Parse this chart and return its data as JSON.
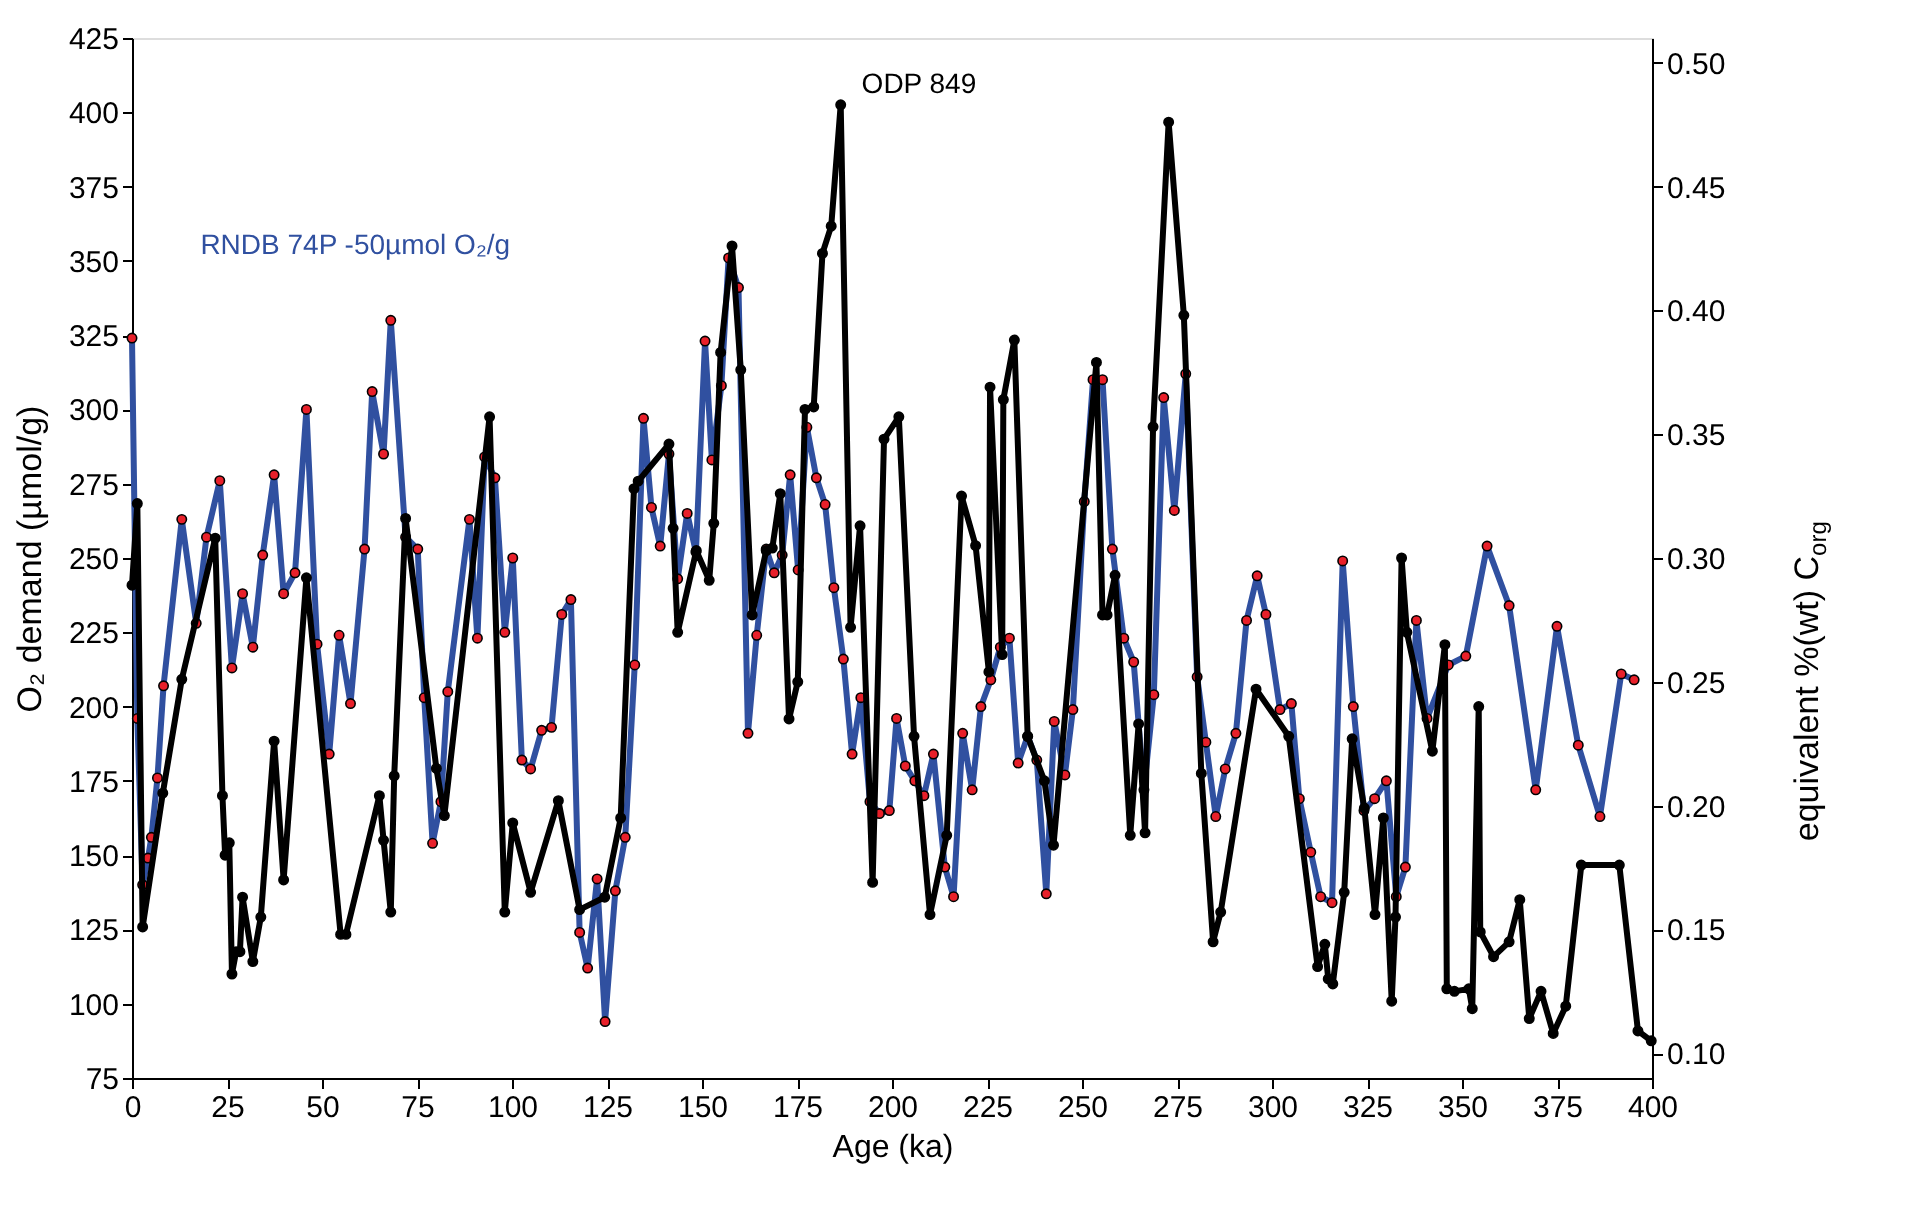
{
  "chart_data": {
    "type": "line",
    "xlabel": "Age (ka)",
    "ylabel": "O₂ demand (µmol/g)",
    "y2label": "equivalent  %(wt) C$_{org}$",
    "xlim": [
      0,
      400
    ],
    "xticks": [
      0,
      25,
      50,
      75,
      100,
      125,
      150,
      175,
      200,
      225,
      250,
      275,
      300,
      325,
      350,
      375,
      400
    ],
    "ylim": [
      75,
      425
    ],
    "yticks": [
      75,
      100,
      125,
      150,
      175,
      200,
      225,
      250,
      275,
      300,
      325,
      350,
      375,
      400,
      425
    ],
    "y2lim": [
      0.09,
      0.51
    ],
    "y2ticks": [
      {
        "value": 0.1,
        "label": "0.10"
      },
      {
        "value": 0.15,
        "label": "0.15"
      },
      {
        "value": 0.2,
        "label": "0.20"
      },
      {
        "value": 0.25,
        "label": "0.25"
      },
      {
        "value": 0.3,
        "label": "0.30"
      },
      {
        "value": 0.35,
        "label": "0.35"
      },
      {
        "value": 0.4,
        "label": "0.40"
      },
      {
        "value": 0.45,
        "label": "0.45"
      },
      {
        "value": 0.5,
        "label": "0.50"
      }
    ],
    "grid": false,
    "legend": false,
    "marker": "circle",
    "line_style": "solid",
    "series": [
      {
        "name": "RNDB 74P -50µmol O₂/g",
        "color": "#3050a0",
        "x": [
          0,
          1.4,
          2.8,
          4.2,
          5.1,
          6.7,
          8.3,
          13.1,
          16.9,
          19.6,
          23.1,
          26.3,
          29.1,
          31.8,
          34.4,
          37.4,
          39.9,
          42.9,
          45.9,
          48.7,
          51.9,
          54.5,
          57.5,
          61.2,
          63.2,
          66.2,
          68.1,
          72.0,
          75.2,
          76.9,
          79.1,
          81.3,
          83.1,
          88.8,
          90.9,
          92.8,
          95.5,
          98.1,
          100.2,
          102.6,
          104.9,
          107.8,
          110.4,
          113.1,
          115.5,
          117.8,
          119.9,
          122.4,
          124.5,
          127.2,
          129.8,
          132.3,
          134.6,
          136.7,
          139.0,
          141.3,
          143.6,
          146.1,
          148.4,
          150.8,
          152.6,
          155.1,
          157.0,
          159.6,
          162.1,
          164.4,
          166.9,
          169.0,
          171.1,
          173.2,
          175.3,
          177.6,
          180.1,
          182.4,
          184.7,
          187.2,
          189.5,
          191.8,
          194.2,
          196.7,
          199.3,
          201.2,
          203.5,
          206.0,
          208.4,
          210.9,
          213.9,
          216.2,
          218.6,
          221.1,
          223.4,
          226.0,
          228.5,
          230.9,
          233.2,
          235.7,
          238.1,
          240.6,
          242.7,
          245.5,
          247.6,
          250.6,
          252.9,
          255.4,
          258.0,
          261.0,
          263.6,
          266.3,
          268.9,
          271.5,
          274.3,
          277.3,
          280.3,
          282.6,
          285.2,
          287.7,
          290.5,
          293.3,
          296.1,
          298.4,
          302.1,
          305.1,
          307.2,
          310.2,
          312.8,
          315.8,
          318.6,
          321.4,
          324.2,
          327.0,
          330.1,
          332.7,
          335.1,
          338.0,
          340.8,
          346.4,
          351.0,
          356.6,
          362.4,
          369.4,
          375.0,
          380.6,
          386.3,
          391.9,
          395.3
        ],
        "values": [
          324,
          196,
          140,
          149,
          156,
          176,
          207,
          263,
          228,
          257,
          276,
          213,
          238,
          220,
          251,
          278,
          238,
          245,
          300,
          221,
          184,
          224,
          201,
          253,
          306,
          285,
          330,
          257,
          253,
          203,
          154,
          168,
          205,
          263,
          223,
          284,
          277,
          225,
          250,
          182,
          179,
          192,
          193,
          231,
          236,
          124,
          112,
          142,
          94,
          138,
          156,
          214,
          297,
          267,
          254,
          285,
          243,
          265,
          252,
          323,
          283,
          308,
          351,
          341,
          191,
          224,
          253,
          245,
          251,
          278,
          246,
          294,
          277,
          268,
          240,
          216,
          184,
          203,
          168,
          164,
          165,
          196,
          180,
          175,
          170,
          184,
          146,
          136,
          191,
          172,
          200,
          209,
          220,
          223,
          181,
          190,
          182,
          137,
          195,
          177,
          199,
          269,
          310,
          310,
          253,
          223,
          215,
          172,
          204,
          304,
          266,
          312,
          210,
          188,
          163,
          179,
          191,
          229,
          244,
          231,
          199,
          201,
          169,
          151,
          136,
          134,
          249,
          200,
          165,
          169,
          175,
          136,
          146,
          229,
          196,
          214,
          217,
          254,
          234,
          172,
          227,
          187,
          163,
          211,
          209
        ]
      },
      {
        "name": "ODP 849",
        "color": "#000000",
        "axis": "y2",
        "x": [
          0,
          1.4,
          2.8,
          8.1,
          13.1,
          21.9,
          23.8,
          24.5,
          25.6,
          26.3,
          27.4,
          28.4,
          29.1,
          31.8,
          33.9,
          37.4,
          39.9,
          45.9,
          54.9,
          56.3,
          65.1,
          66.2,
          68.1,
          69.0,
          72.0,
          80.1,
          82.2,
          94.1,
          98.1,
          100.2,
          104.9,
          112.2,
          117.8,
          124.4,
          128.6,
          132.1,
          133.2,
          141.3,
          142.4,
          143.6,
          148.5,
          151.9,
          153.1,
          154.9,
          157.9,
          160.2,
          163.2,
          166.9,
          168.5,
          170.6,
          172.9,
          175.2,
          177.1,
          179.4,
          181.7,
          184.0,
          186.5,
          189.1,
          191.6,
          194.9,
          197.9,
          201.8,
          205.8,
          210.0,
          214.4,
          218.3,
          222.0,
          225.5,
          225.8,
          229.0,
          229.3,
          232.2,
          235.7,
          240.1,
          242.5,
          253.8,
          255.4,
          256.6,
          258.7,
          262.7,
          264.9,
          266.6,
          268.7,
          272.8,
          276.8,
          281.4,
          284.5,
          286.5,
          295.8,
          304.4,
          312.0,
          313.9,
          314.8,
          316.0,
          319.0,
          321.1,
          324.3,
          327.1,
          329.3,
          331.5,
          332.5,
          334.1,
          335.5,
          342.2,
          345.5,
          346.0,
          348.0,
          351.8,
          352.7,
          354.4,
          354.8,
          358.3,
          362.4,
          365.2,
          367.7,
          370.8,
          374.0,
          377.3,
          381.4,
          391.4,
          396.3,
          399.8
        ],
        "values": [
          0.289,
          0.322,
          0.151,
          0.205,
          0.251,
          0.308,
          0.204,
          0.18,
          0.185,
          0.132,
          0.141,
          0.141,
          0.163,
          0.137,
          0.155,
          0.226,
          0.17,
          0.292,
          0.148,
          0.148,
          0.204,
          0.186,
          0.157,
          0.212,
          0.316,
          0.215,
          0.196,
          0.357,
          0.157,
          0.193,
          0.165,
          0.202,
          0.158,
          0.163,
          0.195,
          0.328,
          0.331,
          0.346,
          0.312,
          0.27,
          0.303,
          0.291,
          0.314,
          0.383,
          0.426,
          0.376,
          0.277,
          0.303,
          0.304,
          0.326,
          0.235,
          0.25,
          0.36,
          0.361,
          0.423,
          0.434,
          0.483,
          0.272,
          0.313,
          0.169,
          0.348,
          0.357,
          0.228,
          0.156,
          0.188,
          0.325,
          0.305,
          0.254,
          0.369,
          0.261,
          0.364,
          0.388,
          0.228,
          0.21,
          0.184,
          0.379,
          0.277,
          0.277,
          0.293,
          0.188,
          0.233,
          0.189,
          0.353,
          0.476,
          0.398,
          0.213,
          0.145,
          0.157,
          0.247,
          0.228,
          0.135,
          0.144,
          0.13,
          0.128,
          0.165,
          0.227,
          0.199,
          0.156,
          0.195,
          0.121,
          0.155,
          0.3,
          0.27,
          0.222,
          0.265,
          0.126,
          0.125,
          0.126,
          0.118,
          0.24,
          0.149,
          0.139,
          0.145,
          0.162,
          0.114,
          0.125,
          0.108,
          0.119,
          0.176,
          0.176,
          0.109,
          0.105
        ]
      }
    ]
  }
}
